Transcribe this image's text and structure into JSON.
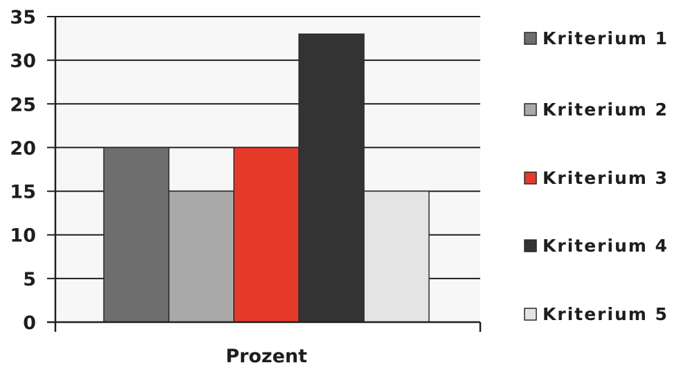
{
  "chart_data": {
    "type": "bar",
    "categories": [
      "Prozent"
    ],
    "series": [
      {
        "name": "Kriterium 1",
        "values": [
          20
        ],
        "color": "#6e6e6e"
      },
      {
        "name": "Kriterium 2",
        "values": [
          15
        ],
        "color": "#a9a9a9"
      },
      {
        "name": "Kriterium 3",
        "values": [
          20
        ],
        "color": "#e53a2a"
      },
      {
        "name": "Kriterium 4",
        "values": [
          33
        ],
        "color": "#333333"
      },
      {
        "name": "Kriterium 5",
        "values": [
          15
        ],
        "color": "#e4e4e4"
      }
    ],
    "title": "",
    "xlabel": "Prozent",
    "ylabel": "",
    "ylim": [
      0,
      35
    ],
    "yticks": [
      0,
      5,
      10,
      15,
      20,
      25,
      30,
      35
    ],
    "grid": true,
    "legend": "right"
  }
}
